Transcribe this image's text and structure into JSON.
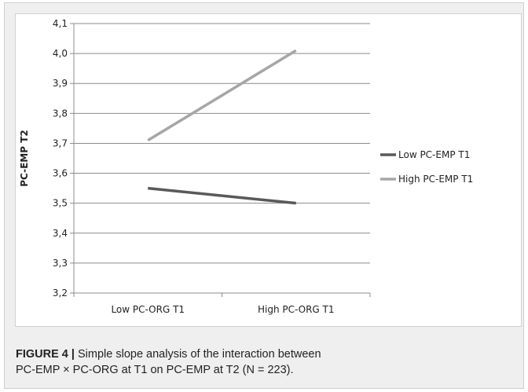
{
  "chart_data": {
    "type": "line",
    "categories": [
      "Low PC-ORG T1",
      "High PC-ORG T1"
    ],
    "ylabel": "PC-EMP T2",
    "ylim": [
      3.2,
      4.1
    ],
    "yticks": [
      "4,1",
      "4,0",
      "3,9",
      "3,8",
      "3,7",
      "3,6",
      "3,5",
      "3,4",
      "3,3",
      "3,2"
    ],
    "grid": true,
    "legend_position": "right",
    "series": [
      {
        "name": "Low PC-EMP T1",
        "values": [
          3.55,
          3.5
        ],
        "color": "#595959"
      },
      {
        "name": "High PC-EMP T1",
        "values": [
          3.71,
          4.01
        ],
        "color": "#a6a6a6"
      }
    ]
  },
  "caption": {
    "label": "FIGURE 4 |",
    "text_line1": " Simple slope analysis of the interaction between",
    "text_line2": "PC-EMP × PC-ORG at T1 on PC-EMP at T2 (N = 223)."
  }
}
